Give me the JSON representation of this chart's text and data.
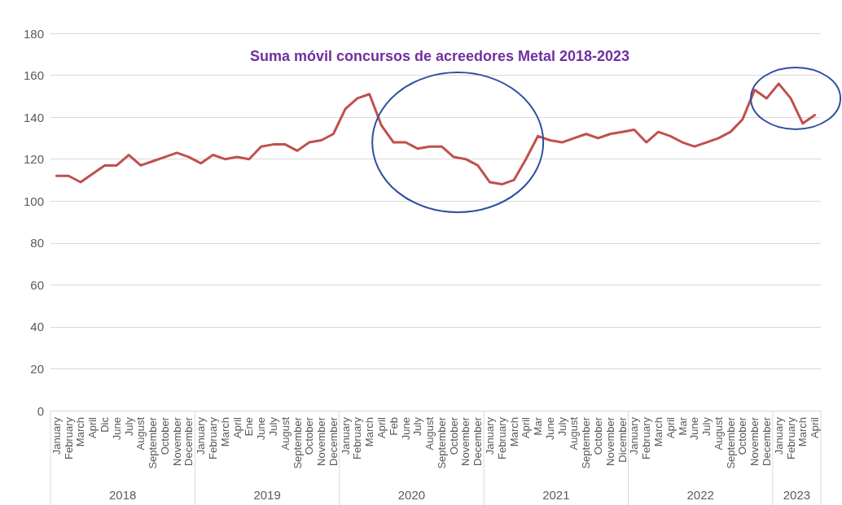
{
  "chart_data": {
    "type": "line",
    "title": "Suma móvil concursos de acreedores Metal 2018-2023",
    "categories": [
      "January",
      "February",
      "March",
      "April",
      "Dic",
      "June",
      "July",
      "August",
      "September",
      "October",
      "November",
      "December",
      "January",
      "February",
      "March",
      "April",
      "Ene",
      "June",
      "July",
      "August",
      "September",
      "October",
      "November",
      "December",
      "January",
      "February",
      "March",
      "April",
      "Feb",
      "June",
      "July",
      "August",
      "September",
      "October",
      "November",
      "December",
      "January",
      "February",
      "March",
      "April",
      "Mar",
      "June",
      "July",
      "August",
      "September",
      "October",
      "November",
      "Dicember",
      "January",
      "February",
      "March",
      "April",
      "Mar",
      "June",
      "July",
      "August",
      "September",
      "October",
      "November",
      "December",
      "January",
      "February",
      "March",
      "April"
    ],
    "series": [
      {
        "color": "#c0504d",
        "values": [
          112,
          112,
          109,
          113,
          117,
          117,
          122,
          117,
          119,
          121,
          123,
          121,
          118,
          122,
          120,
          121,
          120,
          126,
          127,
          127,
          124,
          128,
          129,
          132,
          144,
          149,
          151,
          136,
          128,
          128,
          125,
          126,
          126,
          121,
          120,
          117,
          109,
          108,
          110,
          120,
          131,
          129,
          128,
          130,
          132,
          130,
          132,
          133,
          134,
          128,
          133,
          131,
          128,
          126,
          128,
          130,
          133,
          139,
          153,
          149,
          156,
          149,
          137,
          141
        ]
      }
    ],
    "ylim": [
      0,
      180
    ],
    "yticks": [
      0,
      20,
      40,
      60,
      80,
      100,
      120,
      140,
      160,
      180
    ],
    "grid": "y",
    "marker": "none",
    "line_style": "solid",
    "annotations": [
      "2018",
      "2019",
      "2020",
      "2021",
      "2022",
      "2023"
    ]
  }
}
